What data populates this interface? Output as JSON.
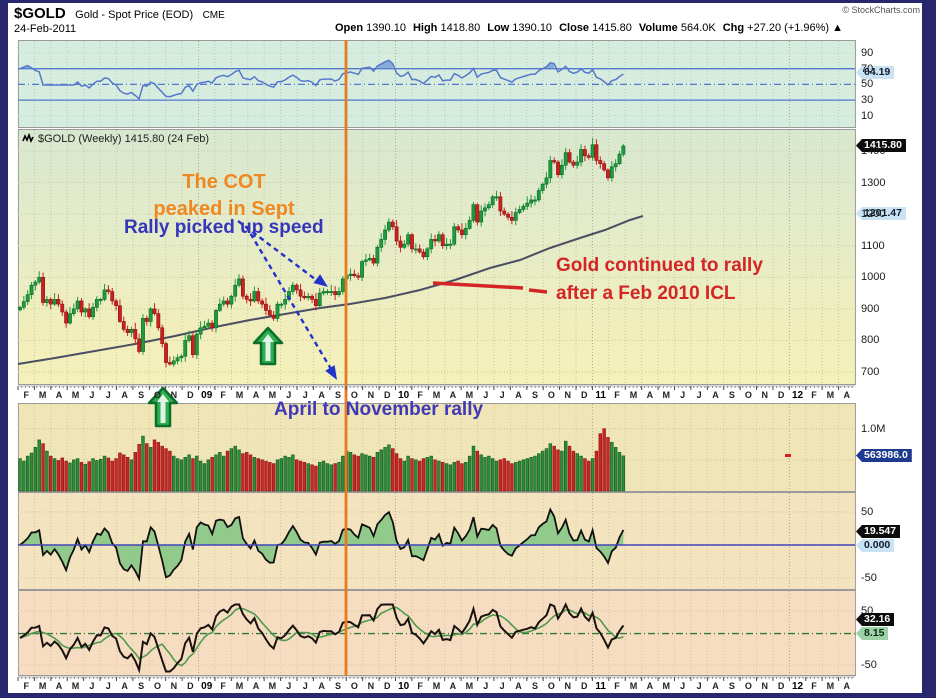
{
  "header": {
    "symbol": "$GOLD",
    "description": "Gold - Spot Price (EOD)",
    "exchange": "CME",
    "date": "24-Feb-2011",
    "copyright": "© StockCharts.com",
    "quote": [
      [
        "Open",
        "1390.10"
      ],
      [
        "High",
        "1418.80"
      ],
      [
        "Low",
        "1390.10"
      ],
      [
        "Close",
        "1415.80"
      ],
      [
        "Volume",
        "564.0K"
      ],
      [
        "Chg",
        "+27.20 (+1.96%) ▲"
      ]
    ]
  },
  "main_label": "$GOLD (Weekly) 1415.80 (24 Feb)",
  "badges": {
    "rsi": "64.19",
    "price_last": "1415.80",
    "ma": "1201.47",
    "volume": "563986.0",
    "osc1_last": "19.547",
    "osc1_zero": "0.000",
    "osc2_last": "32.16",
    "osc2_ref": "8.15"
  },
  "annotations": {
    "cot_line1": "The COT",
    "cot_line2": "peaked in Sept",
    "rally_speed": "Rally picked up speed",
    "gold_rally_line1": "Gold continued to rally",
    "gold_rally_line2": "after a Feb 2010 ICL",
    "april_nov": "April to November rally"
  },
  "colors": {
    "event_line_orange": "#e87a20",
    "annotation_orange": "#f08822",
    "annotation_blue": "#3436bb",
    "annotation_red": "#d42525",
    "candle_up": "#1f9a3f",
    "candle_down": "#cc2020",
    "frame_navy": "#28276e",
    "rsi_line_blue": "#5577cc"
  },
  "chart_data": {
    "type": "candlestick",
    "timeframe": "weekly",
    "title": "$GOLD (Weekly) 1415.80 (24 Feb)",
    "x_months": [
      "F",
      "M",
      "A",
      "M",
      "J",
      "J",
      "A",
      "S",
      "O",
      "N",
      "D",
      "09",
      "F",
      "M",
      "A",
      "M",
      "J",
      "J",
      "A",
      "S",
      "O",
      "N",
      "D",
      "10",
      "F",
      "M",
      "A",
      "M",
      "J",
      "J",
      "A",
      "S",
      "O",
      "N",
      "D",
      "11",
      "F",
      "M",
      "A",
      "M",
      "J",
      "J",
      "A",
      "S",
      "O",
      "N",
      "D",
      "12",
      "F",
      "M",
      "A"
    ],
    "price_ticks": [
      1400,
      1300,
      1200,
      1100,
      1000,
      900,
      800,
      700
    ],
    "price_range": [
      650,
      1480
    ],
    "rsi_ticks": [
      90,
      70,
      50,
      30,
      10
    ],
    "rsi_levels": {
      "overbought": 70,
      "mid": 50,
      "oversold": 30
    },
    "osc_ticks": [
      50,
      -50
    ],
    "osc2_ref_level": 8.15,
    "volume_axis_label": "1.0M",
    "last_quote": {
      "open": 1390.1,
      "high": 1418.8,
      "low": 1390.1,
      "close": 1415.8,
      "volume_k": 564.0,
      "chg": "+27.20",
      "chg_pct": "+1.96%"
    },
    "indicator_values": {
      "rsi": 64.19,
      "ma": 1201.47,
      "osc1": 19.547,
      "osc1_zero": 0.0,
      "osc2": 32.16,
      "osc2_ref": 8.15
    },
    "weekly_closes": [
      905,
      923,
      945,
      975,
      985,
      1000,
      920,
      930,
      915,
      930,
      915,
      890,
      855,
      885,
      900,
      925,
      890,
      900,
      875,
      905,
      930,
      930,
      960,
      955,
      925,
      910,
      860,
      835,
      825,
      835,
      805,
      765,
      870,
      860,
      900,
      885,
      840,
      790,
      730,
      725,
      735,
      745,
      750,
      800,
      815,
      755,
      820,
      840,
      845,
      855,
      840,
      895,
      915,
      925,
      915,
      940,
      975,
      995,
      940,
      930,
      925,
      955,
      925,
      915,
      895,
      880,
      870,
      915,
      915,
      930,
      955,
      975,
      960,
      940,
      935,
      940,
      930,
      910,
      950,
      955,
      955,
      955,
      945,
      955,
      995,
      1005,
      1010,
      1005,
      1000,
      1050,
      1055,
      1060,
      1045,
      1095,
      1120,
      1150,
      1175,
      1160,
      1115,
      1095,
      1105,
      1135,
      1090,
      1090,
      1080,
      1065,
      1090,
      1120,
      1115,
      1135,
      1100,
      1105,
      1105,
      1160,
      1150,
      1135,
      1155,
      1180,
      1230,
      1175,
      1210,
      1220,
      1230,
      1255,
      1255,
      1210,
      1200,
      1190,
      1180,
      1205,
      1215,
      1225,
      1235,
      1245,
      1245,
      1275,
      1295,
      1315,
      1370,
      1365,
      1325,
      1355,
      1395,
      1365,
      1355,
      1365,
      1405,
      1385,
      1380,
      1420,
      1370,
      1360,
      1340,
      1315,
      1350,
      1360,
      1390,
      1415.8
    ],
    "volumes_k": [
      520,
      480,
      560,
      610,
      700,
      820,
      760,
      640,
      560,
      520,
      490,
      530,
      480,
      450,
      500,
      520,
      460,
      430,
      470,
      520,
      490,
      510,
      560,
      530,
      480,
      520,
      610,
      580,
      540,
      500,
      620,
      750,
      880,
      760,
      700,
      820,
      780,
      720,
      680,
      640,
      560,
      520,
      500,
      540,
      580,
      520,
      560,
      480,
      440,
      500,
      540,
      580,
      620,
      560,
      640,
      680,
      720,
      660,
      600,
      620,
      580,
      540,
      520,
      500,
      480,
      460,
      440,
      500,
      520,
      560,
      540,
      580,
      500,
      480,
      460,
      440,
      420,
      400,
      460,
      480,
      440,
      420,
      440,
      460,
      560,
      640,
      620,
      580,
      560,
      600,
      580,
      560,
      540,
      620,
      660,
      700,
      740,
      680,
      600,
      520,
      480,
      560,
      520,
      500,
      480,
      520,
      540,
      560,
      500,
      480,
      460,
      440,
      420,
      460,
      480,
      440,
      460,
      560,
      720,
      640,
      580,
      540,
      560,
      520,
      480,
      500,
      520,
      480,
      440,
      460,
      480,
      500,
      520,
      540,
      560,
      600,
      640,
      680,
      760,
      720,
      660,
      640,
      800,
      720,
      640,
      600,
      560,
      520,
      480,
      520,
      640,
      920,
      1000,
      860,
      780,
      700,
      620,
      564
    ]
  }
}
